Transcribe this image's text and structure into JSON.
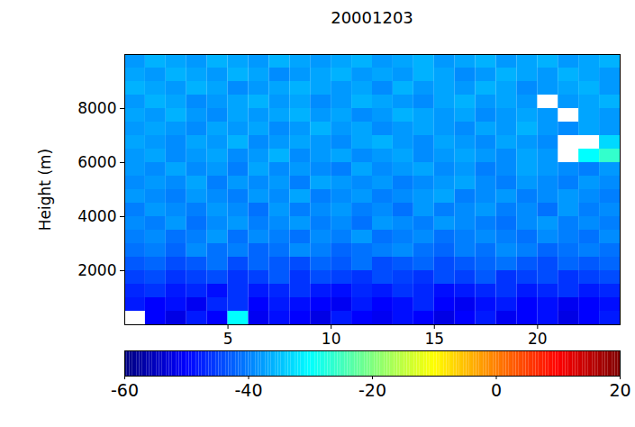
{
  "chart_data": {
    "type": "heatmap",
    "title": "20001203",
    "ylabel": "Height (m)",
    "x": [
      0.5,
      1.5,
      2.5,
      3.5,
      4.5,
      5.5,
      6.5,
      7.5,
      8.5,
      9.5,
      10.5,
      11.5,
      12.5,
      13.5,
      14.5,
      15.5,
      16.5,
      17.5,
      18.5,
      19.5,
      20.5,
      21.5,
      22.5,
      23.5
    ],
    "y": [
      250,
      750,
      1250,
      1750,
      2250,
      2750,
      3250,
      3750,
      4250,
      4750,
      5250,
      5750,
      6250,
      6750,
      7250,
      7750,
      8250,
      8750,
      9250,
      9750
    ],
    "values": [
      [
        null,
        -50,
        -52,
        -48,
        -50,
        -30,
        -51,
        -49,
        -50,
        -52,
        -48,
        -50,
        -51,
        -49,
        -50,
        -52,
        -50,
        -48,
        -51,
        -50,
        -49,
        -52,
        -50,
        -48
      ],
      [
        -48,
        -50,
        -49,
        -51,
        -47,
        -46,
        -50,
        -48,
        -49,
        -50,
        -51,
        -48,
        -50,
        -49,
        -47,
        -50,
        -51,
        -49,
        -48,
        -50,
        -49,
        -51,
        -50,
        -49
      ],
      [
        -47,
        -46,
        -48,
        -47,
        -49,
        -46,
        -48,
        -47,
        -46,
        -48,
        -49,
        -47,
        -48,
        -46,
        -47,
        -49,
        -48,
        -47,
        -46,
        -48,
        -47,
        -46,
        -48,
        -47
      ],
      [
        -45,
        -44,
        -46,
        -45,
        -44,
        -46,
        -45,
        -43,
        -46,
        -44,
        -45,
        -46,
        -44,
        -45,
        -46,
        -44,
        -45,
        -43,
        -46,
        -45,
        -44,
        -46,
        -45,
        -44
      ],
      [
        -43,
        -42,
        -44,
        -43,
        -41,
        -44,
        -42,
        -43,
        -44,
        -42,
        -43,
        -41,
        -44,
        -43,
        -42,
        -44,
        -43,
        -42,
        -41,
        -43,
        -44,
        -42,
        -43,
        -42
      ],
      [
        -41,
        -40,
        -42,
        -39,
        -41,
        -40,
        -42,
        -41,
        -39,
        -40,
        -42,
        -41,
        -40,
        -39,
        -41,
        -42,
        -40,
        -41,
        -39,
        -40,
        -42,
        -41,
        -40,
        -41
      ],
      [
        -40,
        -39,
        -41,
        -40,
        -38,
        -41,
        -39,
        -40,
        -41,
        -39,
        -40,
        -38,
        -41,
        -40,
        -39,
        -41,
        -40,
        -39,
        -40,
        -41,
        -39,
        -40,
        -41,
        -39
      ],
      [
        -39,
        -40,
        -38,
        -41,
        -39,
        -38,
        -40,
        -39,
        -38,
        -40,
        -39,
        -41,
        -38,
        -39,
        -40,
        -38,
        -39,
        -40,
        -41,
        -39,
        -38,
        -40,
        -39,
        -40
      ],
      [
        -40,
        -38,
        -39,
        -40,
        -38,
        -39,
        -41,
        -38,
        -40,
        -39,
        -38,
        -40,
        -39,
        -41,
        -38,
        -40,
        -39,
        -38,
        -40,
        -39,
        -41,
        -38,
        -40,
        -39
      ],
      [
        -38,
        -39,
        -40,
        -38,
        -39,
        -40,
        -38,
        -39,
        -37,
        -40,
        -39,
        -38,
        -40,
        -39,
        -38,
        -37,
        -40,
        -39,
        -38,
        -40,
        -39,
        -38,
        -39,
        -40
      ],
      [
        -39,
        -38,
        -39,
        -37,
        -40,
        -38,
        -39,
        -38,
        -40,
        -37,
        -38,
        -39,
        -38,
        -40,
        -39,
        -38,
        -37,
        -39,
        -40,
        -38,
        -39,
        -40,
        -38,
        -39
      ],
      [
        -38,
        -39,
        -37,
        -39,
        -38,
        -40,
        -37,
        -39,
        -38,
        -39,
        -40,
        -37,
        -39,
        -38,
        -37,
        -39,
        -38,
        -40,
        -39,
        -37,
        -38,
        -39,
        -40,
        -38
      ],
      [
        -38,
        -37,
        -39,
        -38,
        -37,
        -39,
        -38,
        -36,
        -39,
        -38,
        -37,
        -39,
        -38,
        -37,
        -39,
        -38,
        -37,
        -38,
        -39,
        -37,
        -38,
        null,
        -30,
        -26
      ],
      [
        -37,
        -38,
        -39,
        -37,
        -38,
        -36,
        -39,
        -38,
        -37,
        -38,
        -39,
        -37,
        -36,
        -38,
        -39,
        -37,
        -38,
        -39,
        -37,
        -38,
        -39,
        null,
        null,
        -33
      ],
      [
        -38,
        -37,
        -38,
        -39,
        -37,
        -38,
        -37,
        -39,
        -38,
        -36,
        -38,
        -37,
        -39,
        -38,
        -37,
        -38,
        -39,
        -37,
        -38,
        -36,
        -38,
        -39,
        -37,
        -38
      ],
      [
        -37,
        -38,
        -36,
        -38,
        -39,
        -37,
        -38,
        -37,
        -36,
        -38,
        -37,
        -39,
        -38,
        -36,
        -37,
        -38,
        -37,
        -39,
        -38,
        -37,
        -38,
        null,
        -37,
        -38
      ],
      [
        -38,
        -36,
        -37,
        -39,
        -38,
        -37,
        -36,
        -38,
        -37,
        -39,
        -38,
        -36,
        -37,
        -38,
        -39,
        -37,
        -36,
        -38,
        -37,
        -38,
        null,
        -38,
        -37,
        -36
      ],
      [
        -36,
        -37,
        -38,
        -36,
        -37,
        -39,
        -38,
        -37,
        -36,
        -37,
        -38,
        -37,
        -39,
        -36,
        -38,
        -37,
        -38,
        -36,
        -37,
        -39,
        -38,
        -37,
        -36,
        -38
      ],
      [
        -37,
        -38,
        -36,
        -37,
        -38,
        -36,
        -37,
        -39,
        -38,
        -37,
        -36,
        -38,
        -37,
        -38,
        -36,
        -37,
        -39,
        -38,
        -36,
        -37,
        -38,
        -36,
        -37,
        -38
      ],
      [
        -38,
        -36,
        -37,
        -38,
        -36,
        -37,
        -38,
        -36,
        -37,
        -38,
        -37,
        -36,
        -38,
        -37,
        -36,
        -38,
        -37,
        -36,
        -38,
        -37,
        -36,
        -38,
        -37,
        -36
      ]
    ],
    "xlim": [
      0,
      24
    ],
    "xticks": [
      5,
      10,
      15,
      20
    ],
    "ylim": [
      0,
      10000
    ],
    "yticks": [
      2000,
      4000,
      6000,
      8000
    ],
    "color_range": [
      -60,
      20
    ],
    "color_ticks": [
      -60,
      -40,
      -20,
      0,
      20
    ]
  }
}
